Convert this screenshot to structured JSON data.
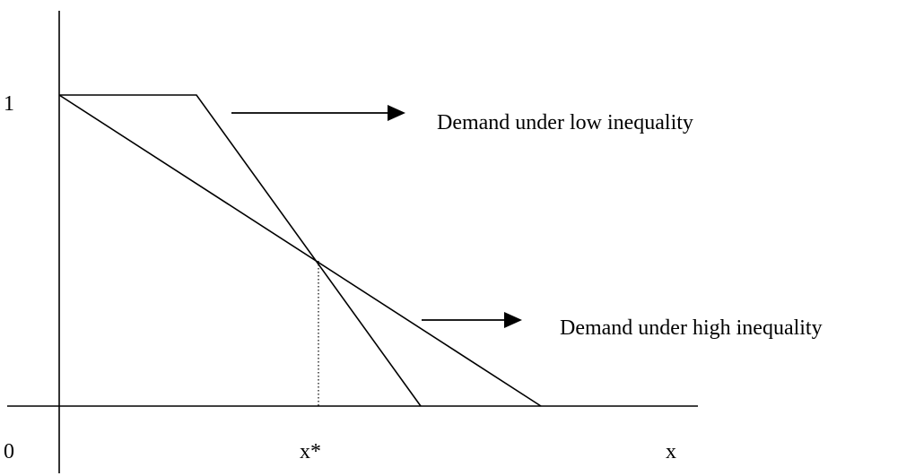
{
  "axes": {
    "y_tick_label": "1",
    "origin_label": "0",
    "x_label": "x",
    "intersection_label": "x*"
  },
  "curves": {
    "low_inequality": {
      "label": "Demand under low inequality"
    },
    "high_inequality": {
      "label": "Demand under high inequality"
    }
  },
  "colors": {
    "ink": "#000000",
    "background": "#ffffff"
  }
}
